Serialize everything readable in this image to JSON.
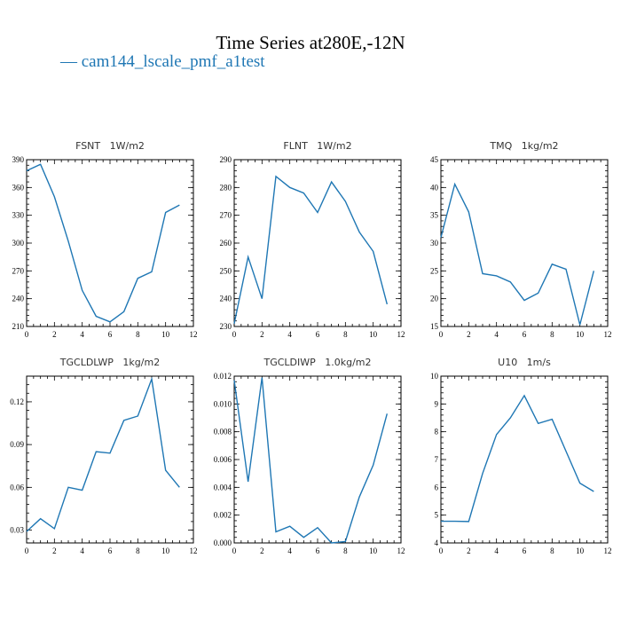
{
  "page": {
    "title": "Time Series at280E,-12N",
    "legend_label": "— cam144_lscale_pmf_a1test",
    "series_color": "#1f77b4"
  },
  "chart_data": [
    {
      "type": "line",
      "title": "FSNT   1W/m2",
      "x": [
        0,
        1,
        2,
        3,
        4,
        5,
        6,
        7,
        8,
        9,
        10,
        11
      ],
      "values": [
        378,
        385,
        350,
        302,
        249,
        221,
        215,
        226,
        262,
        269,
        333,
        341
      ],
      "xlim": [
        0,
        12
      ],
      "ylim": [
        210,
        390
      ],
      "xticks": [
        0,
        2,
        4,
        6,
        8,
        10,
        12
      ],
      "yticks": [
        210,
        240,
        270,
        300,
        330,
        360,
        390
      ],
      "ytick_labels": [
        "210",
        "240",
        "270",
        "300",
        "330",
        "360",
        "390"
      ]
    },
    {
      "type": "line",
      "title": "FLNT   1W/m2",
      "x": [
        0,
        1,
        2,
        3,
        4,
        5,
        6,
        7,
        8,
        9,
        10,
        11
      ],
      "values": [
        231,
        255,
        240,
        284,
        280,
        278,
        271,
        282,
        275,
        264,
        257,
        238
      ],
      "xlim": [
        0,
        12
      ],
      "ylim": [
        230,
        290
      ],
      "xticks": [
        0,
        2,
        4,
        6,
        8,
        10,
        12
      ],
      "yticks": [
        230,
        240,
        250,
        260,
        270,
        280,
        290
      ],
      "ytick_labels": [
        "230",
        "240",
        "250",
        "260",
        "270",
        "280",
        "290"
      ]
    },
    {
      "type": "line",
      "title": "TMQ   1kg/m2",
      "x": [
        0,
        1,
        2,
        3,
        4,
        5,
        6,
        7,
        8,
        9,
        10,
        11
      ],
      "values": [
        31,
        40.6,
        35.6,
        24.5,
        24.1,
        23.0,
        19.7,
        21.0,
        26.2,
        25.3,
        15.3,
        25.0
      ],
      "xlim": [
        0,
        12
      ],
      "ylim": [
        15,
        45
      ],
      "xticks": [
        0,
        2,
        4,
        6,
        8,
        10,
        12
      ],
      "yticks": [
        15,
        20,
        25,
        30,
        35,
        40,
        45
      ],
      "ytick_labels": [
        "15",
        "20",
        "25",
        "30",
        "35",
        "40",
        "45"
      ]
    },
    {
      "type": "line",
      "title": "TGCLDLWP   1kg/m2",
      "x": [
        0,
        1,
        2,
        3,
        4,
        5,
        6,
        7,
        8,
        9,
        10,
        11
      ],
      "values": [
        0.029,
        0.038,
        0.031,
        0.06,
        0.058,
        0.085,
        0.084,
        0.107,
        0.11,
        0.136,
        0.072,
        0.06
      ],
      "xlim": [
        0,
        12
      ],
      "ylim": [
        0.021,
        0.138
      ],
      "xticks": [
        0,
        2,
        4,
        6,
        8,
        10,
        12
      ],
      "yticks": [
        0.03,
        0.06,
        0.09,
        0.12
      ],
      "ytick_labels": [
        "0.03",
        "0.06",
        "0.09",
        "0.12"
      ]
    },
    {
      "type": "line",
      "title": "TGCLDIWP   1.0kg/m2",
      "x": [
        0,
        1,
        2,
        3,
        4,
        5,
        6,
        7,
        8,
        9,
        10,
        11
      ],
      "values": [
        0.0117,
        0.0044,
        0.0119,
        0.0008,
        0.0012,
        0.0004,
        0.0011,
        0.0,
        0.0001,
        0.0033,
        0.0056,
        0.0093
      ],
      "xlim": [
        0,
        12
      ],
      "ylim": [
        0,
        0.012
      ],
      "xticks": [
        0,
        2,
        4,
        6,
        8,
        10,
        12
      ],
      "yticks": [
        0,
        0.002,
        0.004,
        0.006,
        0.008,
        0.01,
        0.012
      ],
      "ytick_labels": [
        "0.000",
        "0.002",
        "0.004",
        "0.006",
        "0.008",
        "0.010",
        "0.012"
      ]
    },
    {
      "type": "line",
      "title": "U10   1m/s",
      "x": [
        0,
        1,
        2,
        3,
        4,
        5,
        6,
        7,
        8,
        9,
        10,
        11
      ],
      "values": [
        4.78,
        4.78,
        4.77,
        6.5,
        7.9,
        8.5,
        9.3,
        8.3,
        8.45,
        7.3,
        6.15,
        5.85
      ],
      "xlim": [
        0,
        12
      ],
      "ylim": [
        4,
        10
      ],
      "xticks": [
        0,
        2,
        4,
        6,
        8,
        10,
        12
      ],
      "yticks": [
        4,
        5,
        6,
        7,
        8,
        9,
        10
      ],
      "ytick_labels": [
        "4",
        "5",
        "6",
        "7",
        "8",
        "9",
        "10"
      ]
    }
  ]
}
